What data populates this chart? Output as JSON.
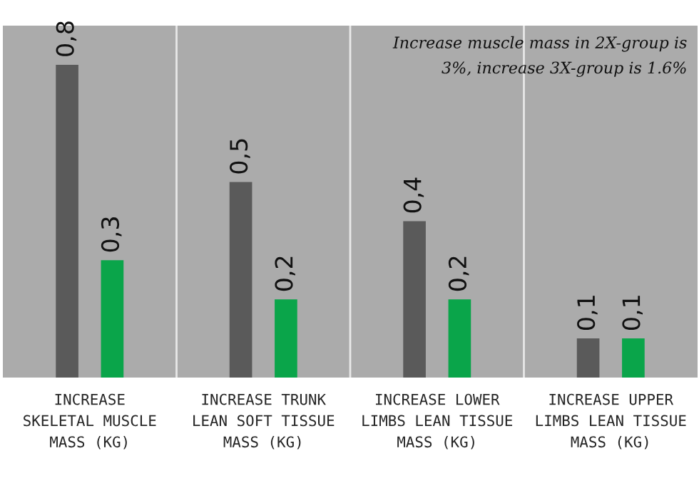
{
  "chart_data": {
    "type": "bar",
    "categories": [
      "INCREASE\nSKELETAL MUSCLE\nMASS (KG)",
      "INCREASE TRUNK\nLEAN SOFT TISSUE\nMASS (KG)",
      "INCREASE LOWER\nLIMBS LEAN TISSUE\nMASS (KG)",
      "INCREASE UPPER\nLIMBS LEAN TISSUE\nMASS (KG)"
    ],
    "series": [
      {
        "color": "#5a5a5a",
        "values": [
          0.8,
          0.5,
          0.4,
          0.1
        ],
        "value_labels": [
          "0,8",
          "0,5",
          "0,4",
          "0,1"
        ]
      },
      {
        "color": "#0aa54a",
        "values": [
          0.3,
          0.2,
          0.2,
          0.1
        ],
        "value_labels": [
          "0,3",
          "0,2",
          "0,2",
          "0,1"
        ]
      }
    ],
    "annotations": [
      "Increase muscle mass in 2X-group is\n3%, increase 3X-group is 1.6%"
    ],
    "grid": "x",
    "legend": false
  }
}
